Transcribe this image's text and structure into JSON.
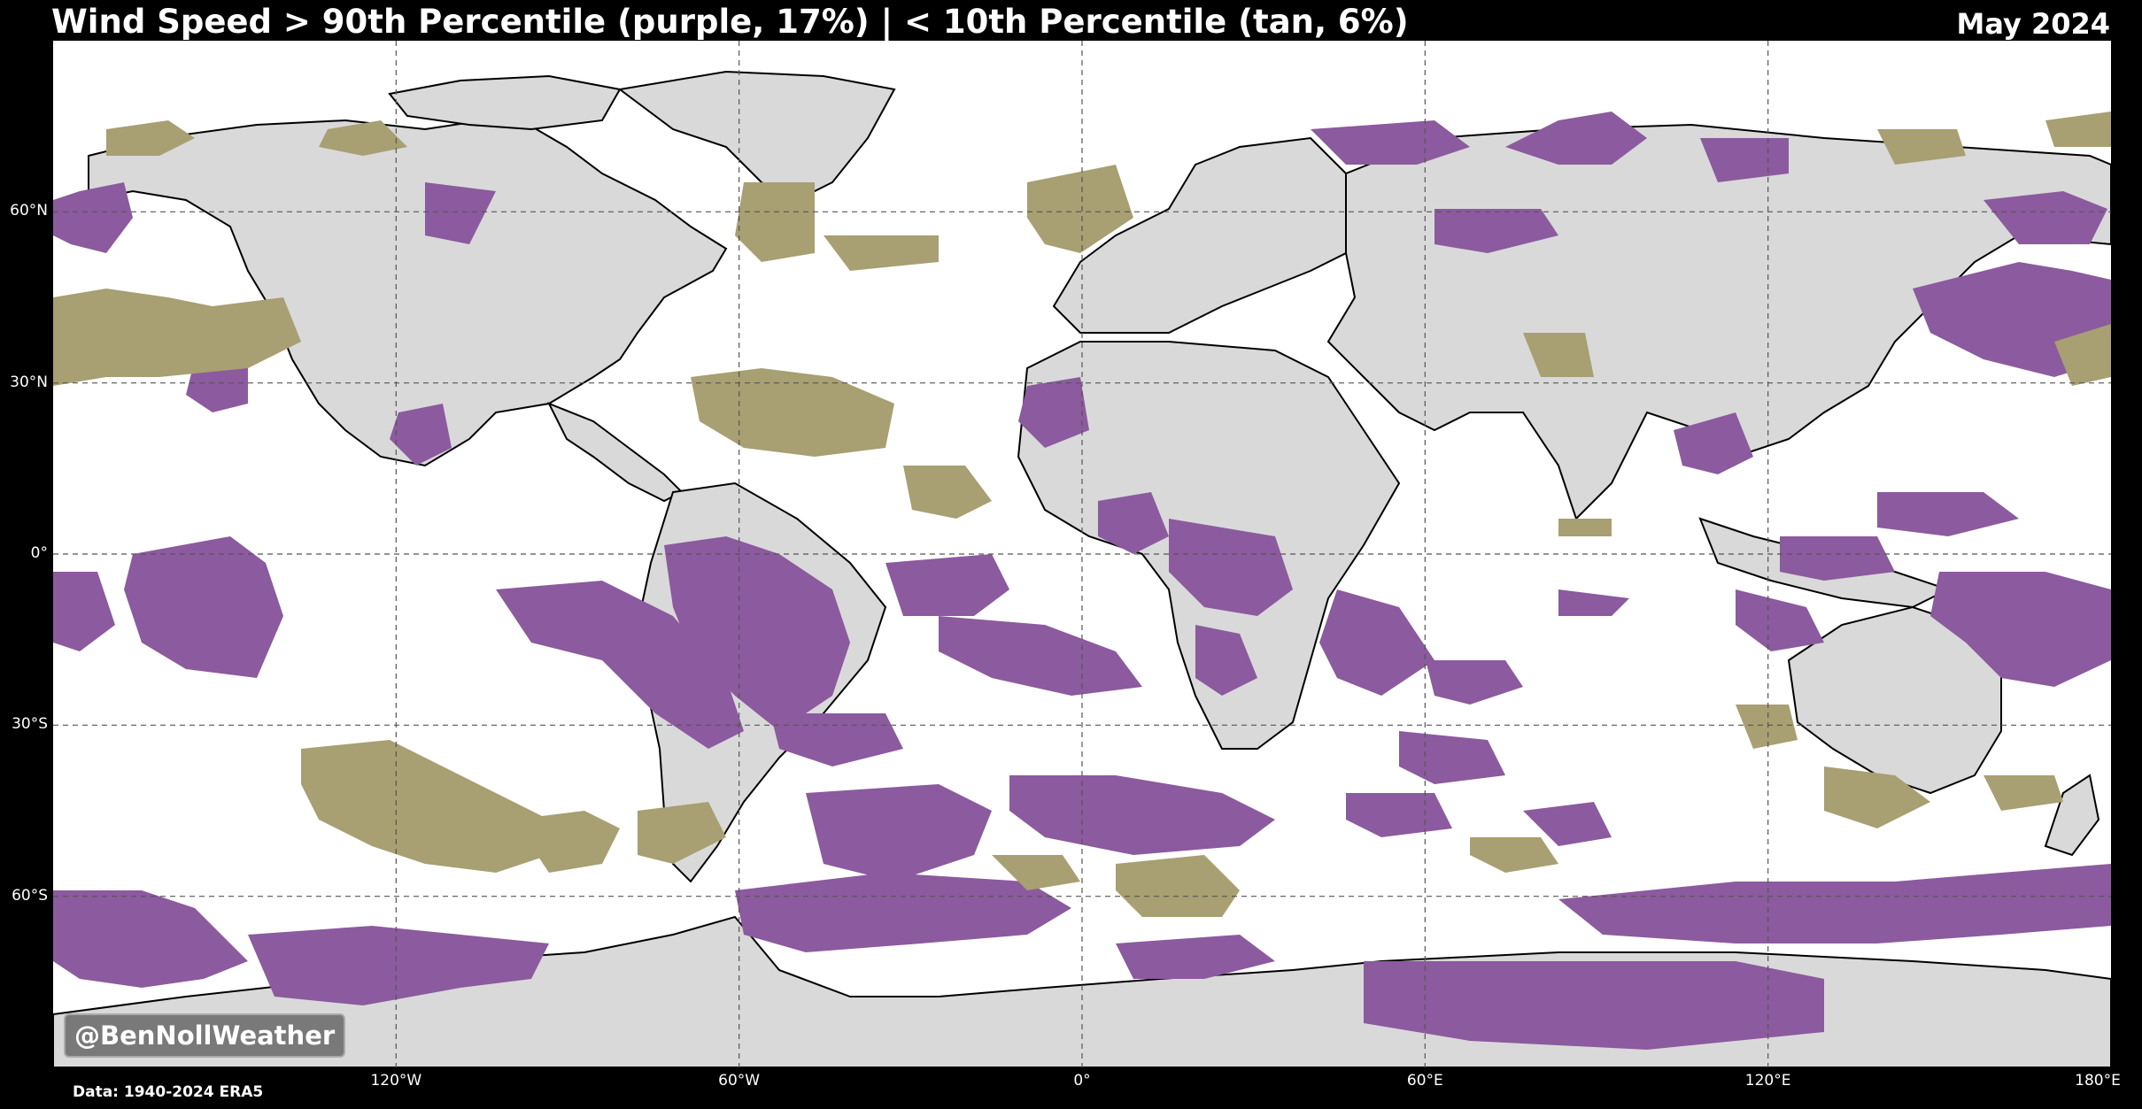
{
  "title": "Wind Speed > 90th Percentile (purple, 17%) | < 10th Percentile (tan, 6%)",
  "month": "May 2024",
  "credit": "@BenNollWeather",
  "source": "Data: 1940-2024 ERA5",
  "colors": {
    "background": "#000000",
    "ocean": "#ffffff",
    "land": "#d9d9d9",
    "above_90th": "#8c5a9e",
    "below_10th": "#a89f72",
    "coastline": "#000000",
    "gridline": "#555555"
  },
  "map": {
    "projection": "PlateCarree",
    "lon_range": [
      -180,
      180
    ],
    "lat_range": [
      -90,
      90
    ],
    "lat_ticks": [
      {
        "value": 60,
        "label": "60°N"
      },
      {
        "value": 30,
        "label": "30°N"
      },
      {
        "value": 0,
        "label": "0°"
      },
      {
        "value": -30,
        "label": "30°S"
      },
      {
        "value": -60,
        "label": "60°S"
      }
    ],
    "lon_ticks": [
      {
        "value": -120,
        "label": "120°W"
      },
      {
        "value": -60,
        "label": "60°W"
      },
      {
        "value": 0,
        "label": "0°"
      },
      {
        "value": 60,
        "label": "60°E"
      },
      {
        "value": 120,
        "label": "120°E"
      },
      {
        "value": 180,
        "label": "180°E"
      }
    ]
  }
}
